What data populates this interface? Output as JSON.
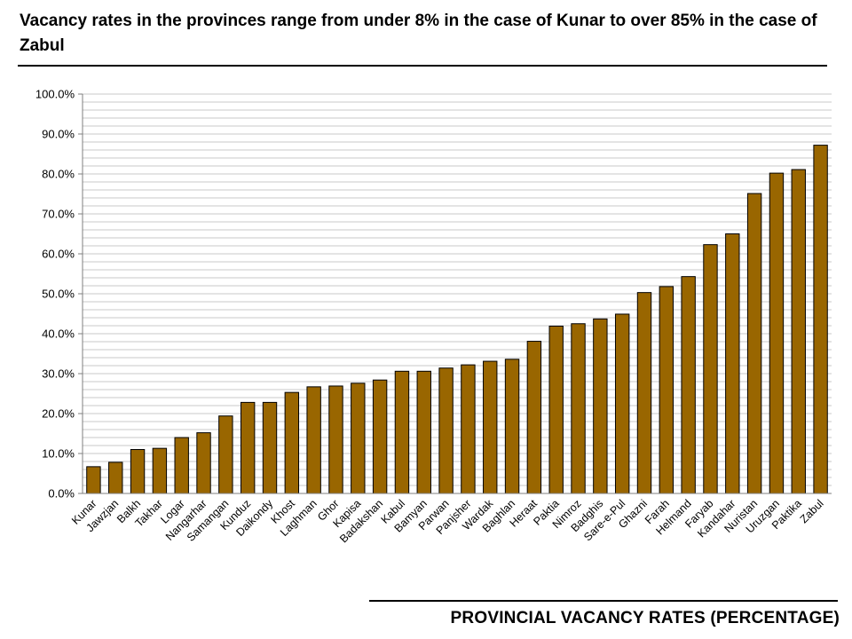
{
  "title": "Vacancy rates in the provinces range from under 8% in the case of Kunar to over 85% in the case of Zabul",
  "footer": "PROVINCIAL VACANCY RATES (PERCENTAGE)",
  "chart_data": {
    "type": "bar",
    "categories": [
      "Kunar",
      "Jawzjan",
      "Balkh",
      "Takhar",
      "Logar",
      "Nangarhar",
      "Samangan",
      "Kunduz",
      "Daikondy",
      "Khost",
      "Laghman",
      "Ghor",
      "Kapisa",
      "Badakshan",
      "Kabul",
      "Bamyan",
      "Parwan",
      "Panjsher",
      "Wardak",
      "Baghlan",
      "Heraat",
      "Paktia",
      "Nimroz",
      "Badghis",
      "Sare-e-Pul",
      "Ghazni",
      "Farah",
      "Helmand",
      "Faryab",
      "Kandahar",
      "Nuristan",
      "Uruzgan",
      "Paktika",
      "Zabul"
    ],
    "values": [
      6.7,
      7.8,
      11.0,
      11.3,
      14.0,
      15.2,
      19.4,
      22.8,
      22.8,
      25.3,
      26.7,
      26.9,
      27.6,
      28.4,
      30.6,
      30.6,
      31.4,
      32.2,
      33.1,
      33.6,
      38.1,
      41.9,
      42.5,
      43.7,
      44.9,
      50.3,
      51.8,
      54.3,
      62.3,
      65.0,
      75.1,
      80.2,
      81.1,
      87.2
    ],
    "xlabel": "",
    "ylabel": "",
    "ylim": [
      0,
      100
    ],
    "yticks": [
      "0.0%",
      "10.0%",
      "20.0%",
      "30.0%",
      "40.0%",
      "50.0%",
      "60.0%",
      "70.0%",
      "80.0%",
      "90.0%",
      "100.0%"
    ],
    "grid": true,
    "legend": "none",
    "bar_color": "#996600",
    "bar_edge_color": "#000000",
    "grid_color": "#c8c8c8"
  }
}
